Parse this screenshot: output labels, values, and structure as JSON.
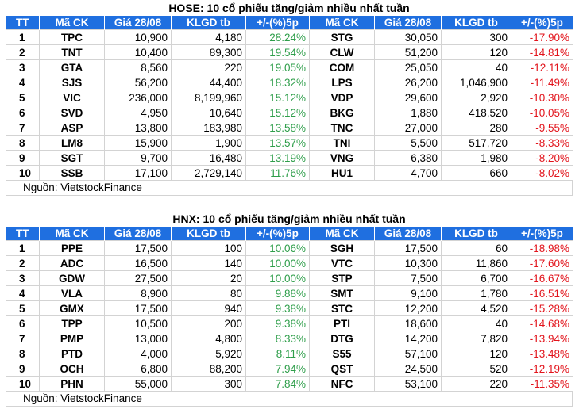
{
  "tables": [
    {
      "title": "HOSE: 10 cổ phiếu tăng/giảm nhiều nhất tuần",
      "headers": [
        "TT",
        "Mã CK",
        "Giá 28/08",
        "KLGD tb",
        "+/-(%)5p",
        "Mã CK",
        "Giá 28/08",
        "KLGD tb",
        "+/-(%)5p"
      ],
      "rows": [
        [
          "1",
          "TPC",
          "10,900",
          "4,180",
          "28.24%",
          "STG",
          "30,050",
          "300",
          "-17.90%"
        ],
        [
          "2",
          "TNT",
          "10,400",
          "89,300",
          "19.54%",
          "CLW",
          "51,200",
          "120",
          "-14.81%"
        ],
        [
          "3",
          "GTA",
          "8,560",
          "220",
          "19.05%",
          "COM",
          "25,050",
          "40",
          "-12.11%"
        ],
        [
          "4",
          "SJS",
          "56,200",
          "44,400",
          "18.32%",
          "LPS",
          "26,200",
          "1,046,900",
          "-11.49%"
        ],
        [
          "5",
          "VIC",
          "236,000",
          "8,199,960",
          "15.12%",
          "VDP",
          "29,600",
          "2,920",
          "-10.30%"
        ],
        [
          "6",
          "SVD",
          "4,950",
          "10,640",
          "15.12%",
          "BKG",
          "1,880",
          "418,520",
          "-10.05%"
        ],
        [
          "7",
          "ASP",
          "13,800",
          "183,980",
          "13.58%",
          "TNC",
          "27,000",
          "280",
          "-9.55%"
        ],
        [
          "8",
          "LM8",
          "15,900",
          "1,900",
          "13.57%",
          "TNI",
          "5,500",
          "517,720",
          "-8.33%"
        ],
        [
          "9",
          "SGT",
          "9,700",
          "16,480",
          "13.19%",
          "VNG",
          "6,380",
          "1,980",
          "-8.20%"
        ],
        [
          "10",
          "SSB",
          "17,100",
          "2,729,140",
          "11.76%",
          "HU1",
          "4,700",
          "660",
          "-8.02%"
        ]
      ],
      "source": "Nguồn: VietstockFinance"
    },
    {
      "title": "HNX: 10 cổ phiếu tăng/giảm nhiều nhất tuần",
      "headers": [
        "TT",
        "Mã CK",
        "Giá 28/08",
        "KLGD tb",
        "+/-(%)5p",
        "Mã CK",
        "Giá 28/08",
        "KLGD tb",
        "+/-(%)5p"
      ],
      "rows": [
        [
          "1",
          "PPE",
          "17,500",
          "100",
          "10.06%",
          "SGH",
          "17,500",
          "60",
          "-18.98%"
        ],
        [
          "2",
          "ADC",
          "16,500",
          "140",
          "10.00%",
          "VTC",
          "10,300",
          "11,860",
          "-17.60%"
        ],
        [
          "3",
          "GDW",
          "27,500",
          "20",
          "10.00%",
          "STP",
          "7,500",
          "6,700",
          "-16.67%"
        ],
        [
          "4",
          "VLA",
          "8,900",
          "80",
          "9.88%",
          "SMT",
          "9,100",
          "1,780",
          "-16.51%"
        ],
        [
          "5",
          "GMX",
          "17,500",
          "940",
          "9.38%",
          "STC",
          "12,200",
          "4,520",
          "-15.28%"
        ],
        [
          "6",
          "TPP",
          "10,500",
          "200",
          "9.38%",
          "PTI",
          "18,600",
          "40",
          "-14.68%"
        ],
        [
          "7",
          "PMP",
          "13,000",
          "4,800",
          "8.33%",
          "DTG",
          "14,200",
          "7,820",
          "-13.94%"
        ],
        [
          "8",
          "PTD",
          "4,000",
          "5,920",
          "8.11%",
          "S55",
          "57,100",
          "120",
          "-13.48%"
        ],
        [
          "9",
          "OCH",
          "6,800",
          "88,200",
          "7.94%",
          "QST",
          "24,500",
          "520",
          "-12.19%"
        ],
        [
          "10",
          "PHN",
          "55,000",
          "300",
          "7.84%",
          "NFC",
          "53,100",
          "220",
          "-11.35%"
        ]
      ],
      "source": "Nguồn: VietstockFinance"
    }
  ]
}
